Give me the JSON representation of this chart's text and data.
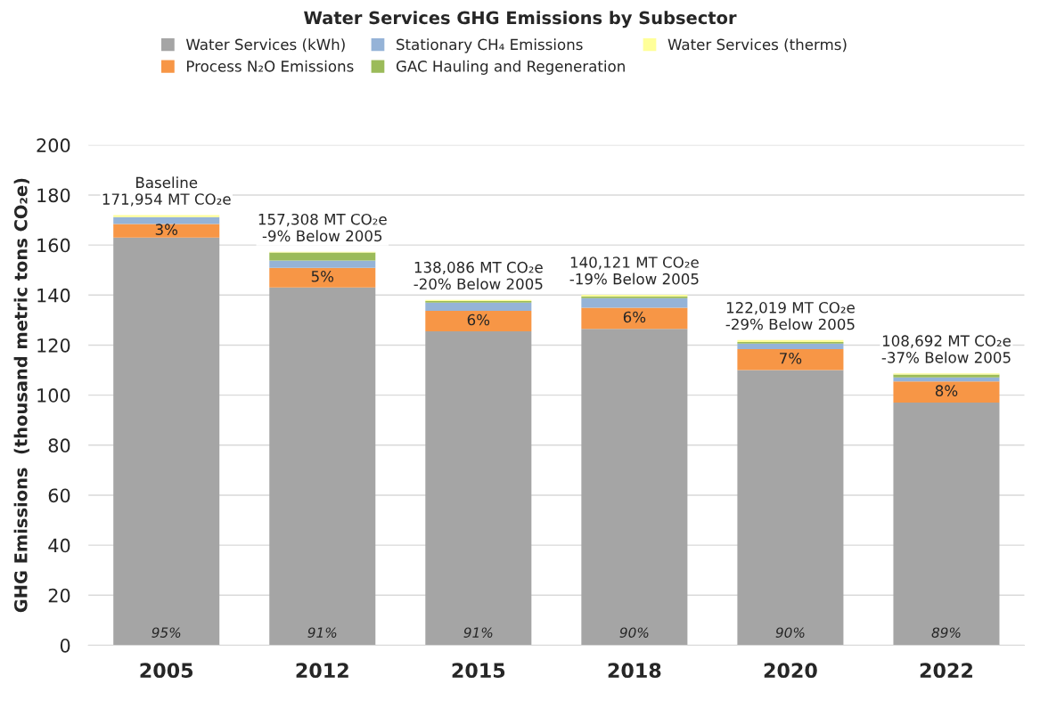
{
  "chart_data": {
    "type": "bar",
    "stacked": true,
    "title": "Water Services GHG Emissions by Subsector",
    "ylabel": "GHG Emissions  (thousand metric tons CO₂e)",
    "categories": [
      "2005",
      "2012",
      "2015",
      "2018",
      "2020",
      "2022"
    ],
    "series": [
      {
        "name": "Water Services (kWh)",
        "color": "#a5a5a5",
        "values": [
          163.0,
          143.0,
          125.5,
          126.5,
          110.0,
          97.0
        ]
      },
      {
        "name": "Process N₂O Emissions",
        "color": "#f79646",
        "values": [
          5.4,
          7.9,
          8.2,
          8.4,
          8.4,
          8.5
        ]
      },
      {
        "name": "Stationary CH₄ Emissions",
        "color": "#95b3d7",
        "values": [
          2.8,
          2.9,
          3.3,
          3.9,
          2.2,
          1.6
        ]
      },
      {
        "name": "GAC Hauling and Regeneration",
        "color": "#9bbb59",
        "values": [
          null,
          3.2,
          0.6,
          0.7,
          0.6,
          1.1
        ]
      },
      {
        "name": "Water Services (therms)",
        "color": "#ffff99",
        "values": [
          0.8,
          0.3,
          0.5,
          0.6,
          0.8,
          0.5
        ]
      }
    ],
    "ylim": [
      0,
      200
    ],
    "yticks": [
      0,
      20,
      40,
      60,
      80,
      100,
      120,
      140,
      160,
      180,
      200
    ],
    "grid": "y",
    "legend": "top",
    "totals": [
      "Baseline\n171,954 MT CO₂e",
      "157,308 MT CO₂e\n-9% Below 2005",
      "138,086 MT CO₂e\n-20% Below 2005",
      "140,121 MT CO₂e\n-19% Below 2005",
      "122,019 MT CO₂e\n-29% Below 2005",
      "108,692 MT CO₂e\n-37% Below 2005"
    ],
    "annotations": [
      "95%",
      "91%",
      "91%",
      "90%",
      "90%",
      "89%",
      "3%",
      "5%",
      "6%",
      "6%",
      "7%",
      "8%"
    ]
  }
}
